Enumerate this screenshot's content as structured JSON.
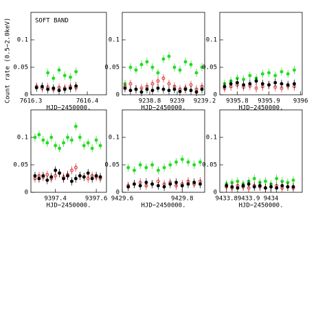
{
  "chart_data": [
    {
      "type": "scatter",
      "annotation": "SOFT BAND",
      "ylabel": "Count rate (0.5−2.0keV)",
      "xlabel": "HJD−2450000.",
      "xlim": [
        7616.3,
        7616.434
      ],
      "xticks": [
        7616.3,
        7616.4
      ],
      "ylim": [
        0,
        0.15
      ],
      "yticks": [
        0,
        0.05,
        0.1
      ],
      "x": [
        7616.31,
        7616.32,
        7616.33,
        7616.34,
        7616.35,
        7616.36,
        7616.37,
        7616.38
      ],
      "series": [
        {
          "color": "#22dd22",
          "marker": "filled",
          "values": [
            null,
            null,
            0.04,
            0.03,
            0.045,
            0.035,
            0.032,
            0.042
          ]
        },
        {
          "color": "#dd2222",
          "marker": "open",
          "values": [
            0.015,
            0.012,
            0.014,
            0.01,
            0.013,
            0.012,
            0.015,
            0.013
          ]
        },
        {
          "color": "#000000",
          "marker": "filled",
          "values": [
            0.013,
            0.015,
            0.01,
            0.012,
            0.008,
            0.01,
            0.012,
            0.016
          ]
        }
      ]
    },
    {
      "type": "scatter",
      "xlabel": "HJD−2450000.",
      "xlim": [
        9238.6,
        9239.2
      ],
      "xticks": [
        9238.8,
        9239,
        9239.2
      ],
      "ylim": [
        0,
        0.15
      ],
      "yticks": [
        0,
        0.05,
        0.1
      ],
      "x": [
        9238.62,
        9238.66,
        9238.7,
        9238.74,
        9238.78,
        9238.82,
        9238.86,
        9238.9,
        9238.94,
        9238.98,
        9239.02,
        9239.06,
        9239.1,
        9239.14,
        9239.18
      ],
      "series": [
        {
          "color": "#22dd22",
          "marker": "filled",
          "values": [
            0.02,
            0.05,
            0.045,
            0.055,
            0.06,
            0.05,
            0.04,
            0.065,
            0.07,
            0.05,
            0.045,
            0.06,
            0.055,
            0.04,
            0.05
          ]
        },
        {
          "color": "#dd2222",
          "marker": "open",
          "values": [
            0.015,
            0.02,
            0.01,
            0.012,
            0.015,
            0.02,
            0.025,
            0.03,
            0.02,
            0.015,
            0.01,
            0.012,
            0.018,
            0.01,
            0.015
          ]
        },
        {
          "color": "#000000",
          "marker": "filled",
          "values": [
            0.012,
            0.008,
            0.01,
            0.005,
            0.01,
            0.008,
            0.012,
            0.01,
            0.008,
            0.01,
            0.006,
            0.01,
            0.008,
            0.005,
            0.01
          ]
        }
      ]
    },
    {
      "type": "scatter",
      "xlabel": "HJD−2450000.",
      "xlim": [
        9395.745,
        9396.005
      ],
      "xticks": [
        9395.8,
        9395.9,
        9396
      ],
      "ylim": [
        0,
        0.15
      ],
      "yticks": [
        0,
        0.05,
        0.1
      ],
      "x": [
        9395.76,
        9395.78,
        9395.8,
        9395.82,
        9395.84,
        9395.86,
        9395.88,
        9395.9,
        9395.92,
        9395.94,
        9395.96,
        9395.98
      ],
      "series": [
        {
          "color": "#22dd22",
          "marker": "filled",
          "values": [
            0.02,
            0.025,
            0.03,
            0.028,
            0.035,
            0.03,
            0.038,
            0.04,
            0.035,
            0.042,
            0.038,
            0.045
          ]
        },
        {
          "color": "#dd2222",
          "marker": "open",
          "values": [
            0.012,
            0.015,
            0.018,
            0.014,
            0.016,
            0.012,
            0.015,
            0.018,
            0.014,
            0.012,
            0.016,
            0.015
          ]
        },
        {
          "color": "#000000",
          "marker": "filled",
          "values": [
            0.015,
            0.02,
            0.022,
            0.018,
            0.02,
            0.025,
            0.02,
            0.018,
            0.022,
            0.02,
            0.018,
            0.02
          ]
        }
      ]
    },
    {
      "type": "scatter",
      "xlabel": "HJD−2450000.",
      "xlim": [
        9397.28,
        9397.65
      ],
      "xticks": [
        9397.4,
        9397.6
      ],
      "ylim": [
        0,
        0.15
      ],
      "yticks": [
        0,
        0.05,
        0.1
      ],
      "x": [
        9397.3,
        9397.32,
        9397.34,
        9397.36,
        9397.38,
        9397.4,
        9397.42,
        9397.44,
        9397.46,
        9397.48,
        9397.5,
        9397.52,
        9397.54,
        9397.56,
        9397.58,
        9397.6,
        9397.62
      ],
      "series": [
        {
          "color": "#22dd22",
          "marker": "filled",
          "values": [
            0.1,
            0.105,
            0.095,
            0.09,
            0.1,
            0.085,
            0.08,
            0.09,
            0.1,
            0.095,
            0.12,
            0.1,
            0.085,
            0.09,
            0.08,
            0.095,
            0.085
          ]
        },
        {
          "color": "#dd2222",
          "marker": "open",
          "values": [
            0.025,
            0.03,
            0.028,
            0.032,
            0.025,
            0.03,
            0.035,
            0.028,
            0.032,
            0.04,
            0.045,
            0.03,
            0.028,
            0.025,
            0.03,
            0.028,
            0.025
          ]
        },
        {
          "color": "#000000",
          "marker": "filled",
          "values": [
            0.03,
            0.025,
            0.03,
            0.022,
            0.028,
            0.04,
            0.035,
            0.025,
            0.03,
            0.02,
            0.025,
            0.03,
            0.028,
            0.035,
            0.025,
            0.03,
            0.028
          ]
        }
      ]
    },
    {
      "type": "scatter",
      "xlabel": "HJD−2450000.",
      "xlim": [
        9429.6,
        9429.875
      ],
      "xticks": [
        9429.6,
        9429.8
      ],
      "ylim": [
        0,
        0.15
      ],
      "yticks": [
        0,
        0.05,
        0.1
      ],
      "x": [
        9429.62,
        9429.64,
        9429.66,
        9429.68,
        9429.7,
        9429.72,
        9429.74,
        9429.76,
        9429.78,
        9429.8,
        9429.82,
        9429.84,
        9429.86
      ],
      "series": [
        {
          "color": "#22dd22",
          "marker": "filled",
          "values": [
            0.045,
            0.04,
            0.05,
            0.045,
            0.05,
            0.04,
            0.045,
            0.05,
            0.055,
            0.06,
            0.055,
            0.05,
            0.055
          ]
        },
        {
          "color": "#dd2222",
          "marker": "open",
          "values": [
            0.012,
            0.015,
            0.018,
            0.012,
            0.015,
            0.02,
            0.015,
            0.018,
            0.012,
            0.015,
            0.02,
            0.015,
            0.02
          ]
        },
        {
          "color": "#000000",
          "marker": "filled",
          "values": [
            0.01,
            0.015,
            0.012,
            0.018,
            0.015,
            0.012,
            0.01,
            0.015,
            0.018,
            0.012,
            0.015,
            0.018,
            0.015
          ]
        }
      ]
    },
    {
      "type": "scatter",
      "xlabel": "HJD−2450000.",
      "xlim": [
        9433.77,
        9434.14
      ],
      "xticks": [
        9433.8,
        9433.9,
        9434
      ],
      "ylim": [
        0,
        0.15
      ],
      "yticks": [
        0,
        0.05,
        0.1
      ],
      "x": [
        9433.8,
        9433.825,
        9433.85,
        9433.875,
        9433.9,
        9433.925,
        9433.95,
        9433.975,
        9434,
        9434.025,
        9434.05,
        9434.075,
        9434.1
      ],
      "series": [
        {
          "color": "#22dd22",
          "marker": "filled",
          "values": [
            0.015,
            0.018,
            0.02,
            0.015,
            0.02,
            0.025,
            0.018,
            0.02,
            0.015,
            0.025,
            0.02,
            0.018,
            0.022
          ]
        },
        {
          "color": "#dd2222",
          "marker": "open",
          "values": [
            0.01,
            0.008,
            0.012,
            0.01,
            0.008,
            0.012,
            0.01,
            0.008,
            0.01,
            0.012,
            0.008,
            0.01,
            0.008
          ]
        },
        {
          "color": "#000000",
          "marker": "filled",
          "values": [
            0.012,
            0.01,
            0.008,
            0.012,
            0.015,
            0.01,
            0.012,
            0.008,
            0.01,
            0.008,
            0.012,
            0.01,
            0.01
          ]
        }
      ]
    }
  ]
}
